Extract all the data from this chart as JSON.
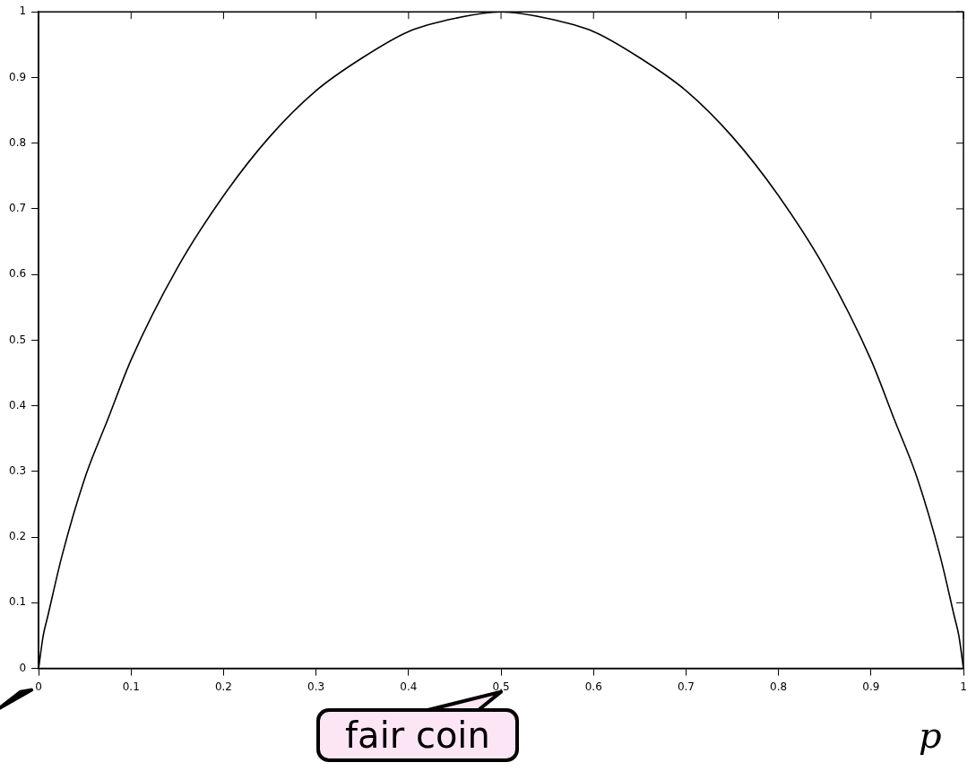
{
  "chart_data": {
    "type": "line",
    "xlabel": "p",
    "x": [
      0,
      0.005,
      0.01,
      0.025,
      0.05,
      0.075,
      0.1,
      0.15,
      0.2,
      0.25,
      0.3,
      0.35,
      0.4,
      0.45,
      0.5,
      0.55,
      0.6,
      0.65,
      0.7,
      0.75,
      0.8,
      0.85,
      0.9,
      0.925,
      0.95,
      0.975,
      0.99,
      0.995,
      1
    ],
    "series": [
      {
        "color": "#000000",
        "values": [
          0,
          0.05,
          0.08,
          0.17,
          0.29,
          0.38,
          0.47,
          0.61,
          0.72,
          0.81,
          0.88,
          0.93,
          0.97,
          0.99,
          1,
          0.99,
          0.97,
          0.93,
          0.88,
          0.81,
          0.72,
          0.61,
          0.47,
          0.38,
          0.29,
          0.17,
          0.08,
          0.05,
          0
        ]
      }
    ],
    "xlim": [
      0,
      1
    ],
    "xticks": [
      0,
      0.1,
      0.2,
      0.3,
      0.4,
      0.5,
      0.6,
      0.7,
      0.8,
      0.9,
      1
    ],
    "ylim": [
      0,
      1
    ],
    "yticks": [
      0,
      0.1,
      0.2,
      0.3,
      0.4,
      0.5,
      0.6,
      0.7,
      0.8,
      0.9,
      1
    ],
    "grid": false,
    "legend": false,
    "marker": "none",
    "line_style": "solid",
    "annotations": [
      "fair coin"
    ]
  }
}
